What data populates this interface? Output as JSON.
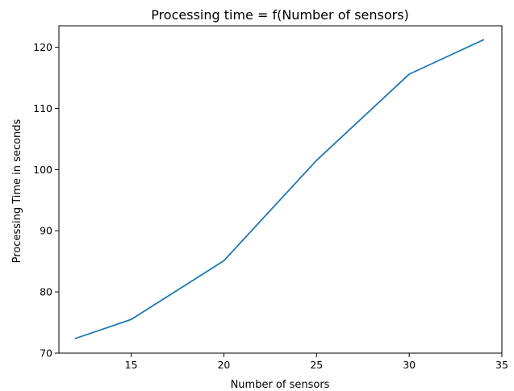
{
  "chart_data": {
    "type": "line",
    "title": "Processing time = f(Number of sensors)",
    "xlabel": "Number of sensors",
    "ylabel": "Processing Time in seconds",
    "xlim": [
      11.1,
      35.0
    ],
    "ylim": [
      70.0,
      123.5
    ],
    "xticks": [
      15,
      20,
      25,
      30,
      35
    ],
    "yticks": [
      70,
      80,
      90,
      100,
      110,
      120
    ],
    "grid": false,
    "series": [
      {
        "color": "#1f77b4",
        "x": [
          12,
          15,
          20,
          25,
          30,
          34
        ],
        "y": [
          72.4,
          75.5,
          85.1,
          101.5,
          115.6,
          121.2
        ]
      }
    ]
  }
}
